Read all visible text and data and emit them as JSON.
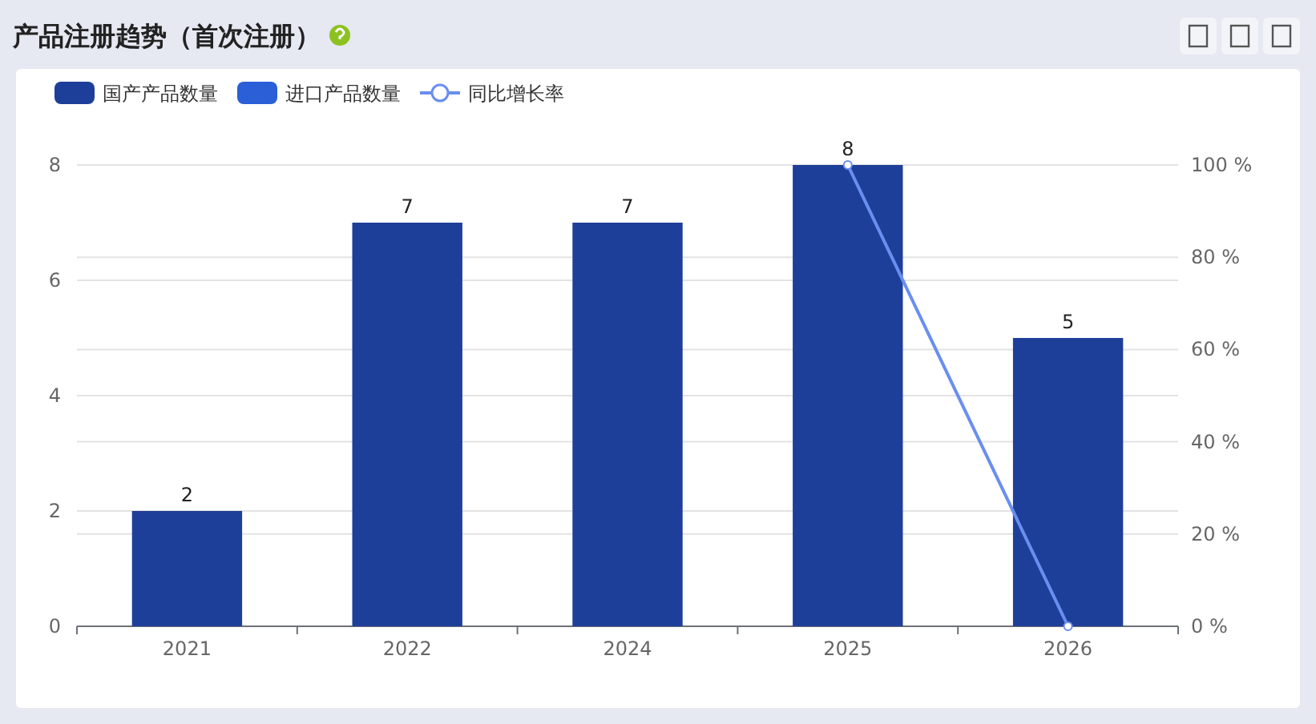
{
  "chart_data": {
    "type": "bar",
    "title": "产品注册趋势（首次注册）",
    "categories": [
      "2021",
      "2022",
      "2024",
      "2025",
      "2026"
    ],
    "series": [
      {
        "name": "国产产品数量",
        "color": "#1e3f99",
        "values": [
          2,
          7,
          7,
          8,
          5
        ],
        "value_labels": [
          "2",
          "7",
          "7",
          "8",
          "5"
        ]
      },
      {
        "name": "进口产品数量",
        "color": "#2a5fd8",
        "values": [
          null,
          null,
          null,
          null,
          null
        ]
      },
      {
        "name": "同比增长率",
        "type": "line",
        "axis": "y2",
        "color": "#6a8ef0",
        "marker": "circle",
        "values": [
          null,
          null,
          null,
          100,
          0
        ]
      }
    ],
    "ylim": [
      0,
      8
    ],
    "yticks": [
      0,
      2,
      4,
      6,
      8
    ],
    "y2lim": [
      0,
      100
    ],
    "y2ticks": [
      {
        "value": 0,
        "label": "0 %"
      },
      {
        "value": 20,
        "label": "20 %"
      },
      {
        "value": 40,
        "label": "40 %"
      },
      {
        "value": 60,
        "label": "60 %"
      },
      {
        "value": 80,
        "label": "80 %"
      },
      {
        "value": 100,
        "label": "100 %"
      }
    ],
    "grid": true,
    "legend": "top left"
  }
}
